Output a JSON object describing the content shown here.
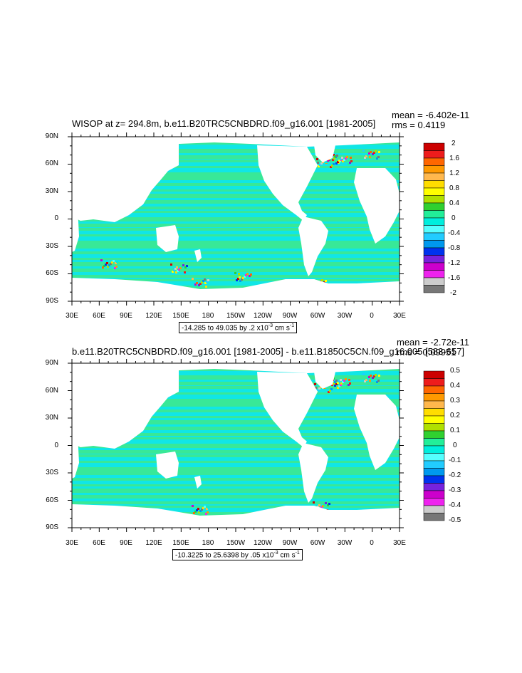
{
  "panels": [
    {
      "title": "WISOP at z= 294.8m, b.e11.B20TRC5CNBDRD.f09_g16.001 [1981-2005]",
      "mean": "mean = -6.402e-11",
      "rms": "rms = 0.4119",
      "y_ticks": [
        "90N",
        "60N",
        "30N",
        "0",
        "30S",
        "60S",
        "90S"
      ],
      "x_ticks": [
        "30E",
        "60E",
        "90E",
        "120E",
        "150E",
        "180",
        "150W",
        "120W",
        "90W",
        "60W",
        "30W",
        "0",
        "30E"
      ],
      "colorbar_labels": [
        "2",
        "1.6",
        "1.2",
        "0.8",
        "0.4",
        "0",
        "-0.4",
        "-0.8",
        "-1.2",
        "-1.6",
        "-2"
      ],
      "range_text": "-14.285 to 49.035 by .2 x10",
      "range_exp": "-3",
      "range_units": " cm s",
      "range_units_exp": "-1"
    },
    {
      "title": "b.e11.B20TRC5CNBDRD.f09_g16.001 [1981-2005] - b.e11.B1850C5CN.f09_g16.005 [583-657]",
      "mean": "mean = -2.72e-11",
      "rms": "rms = 0.09951",
      "y_ticks": [
        "90N",
        "60N",
        "30N",
        "0",
        "30S",
        "60S",
        "90S"
      ],
      "x_ticks": [
        "30E",
        "60E",
        "90E",
        "120E",
        "150E",
        "180",
        "150W",
        "120W",
        "90W",
        "60W",
        "30W",
        "0",
        "30E"
      ],
      "colorbar_labels": [
        "0.5",
        "0.4",
        "0.3",
        "0.2",
        "0.1",
        "0",
        "-0.1",
        "-0.2",
        "-0.3",
        "-0.4",
        "-0.5"
      ],
      "range_text": "-10.3225 to 25.6398 by .05 x10",
      "range_exp": "-3",
      "range_units": " cm s",
      "range_units_exp": "-1"
    }
  ],
  "colors": {
    "ocean_main": "#10e6e6",
    "ocean_band": "#40e88a",
    "land": "#ffffff",
    "colorbar": [
      "#cc0000",
      "#ee1c1c",
      "#ff6600",
      "#ff9900",
      "#ffb84d",
      "#ffdd00",
      "#ffff00",
      "#b0e000",
      "#30d030",
      "#22ee99",
      "#00eedd",
      "#55ffff",
      "#22ccff",
      "#0099ee",
      "#0033ee",
      "#7722dd",
      "#cc00cc",
      "#ee22ee",
      "#cccccc",
      "#777777"
    ]
  }
}
